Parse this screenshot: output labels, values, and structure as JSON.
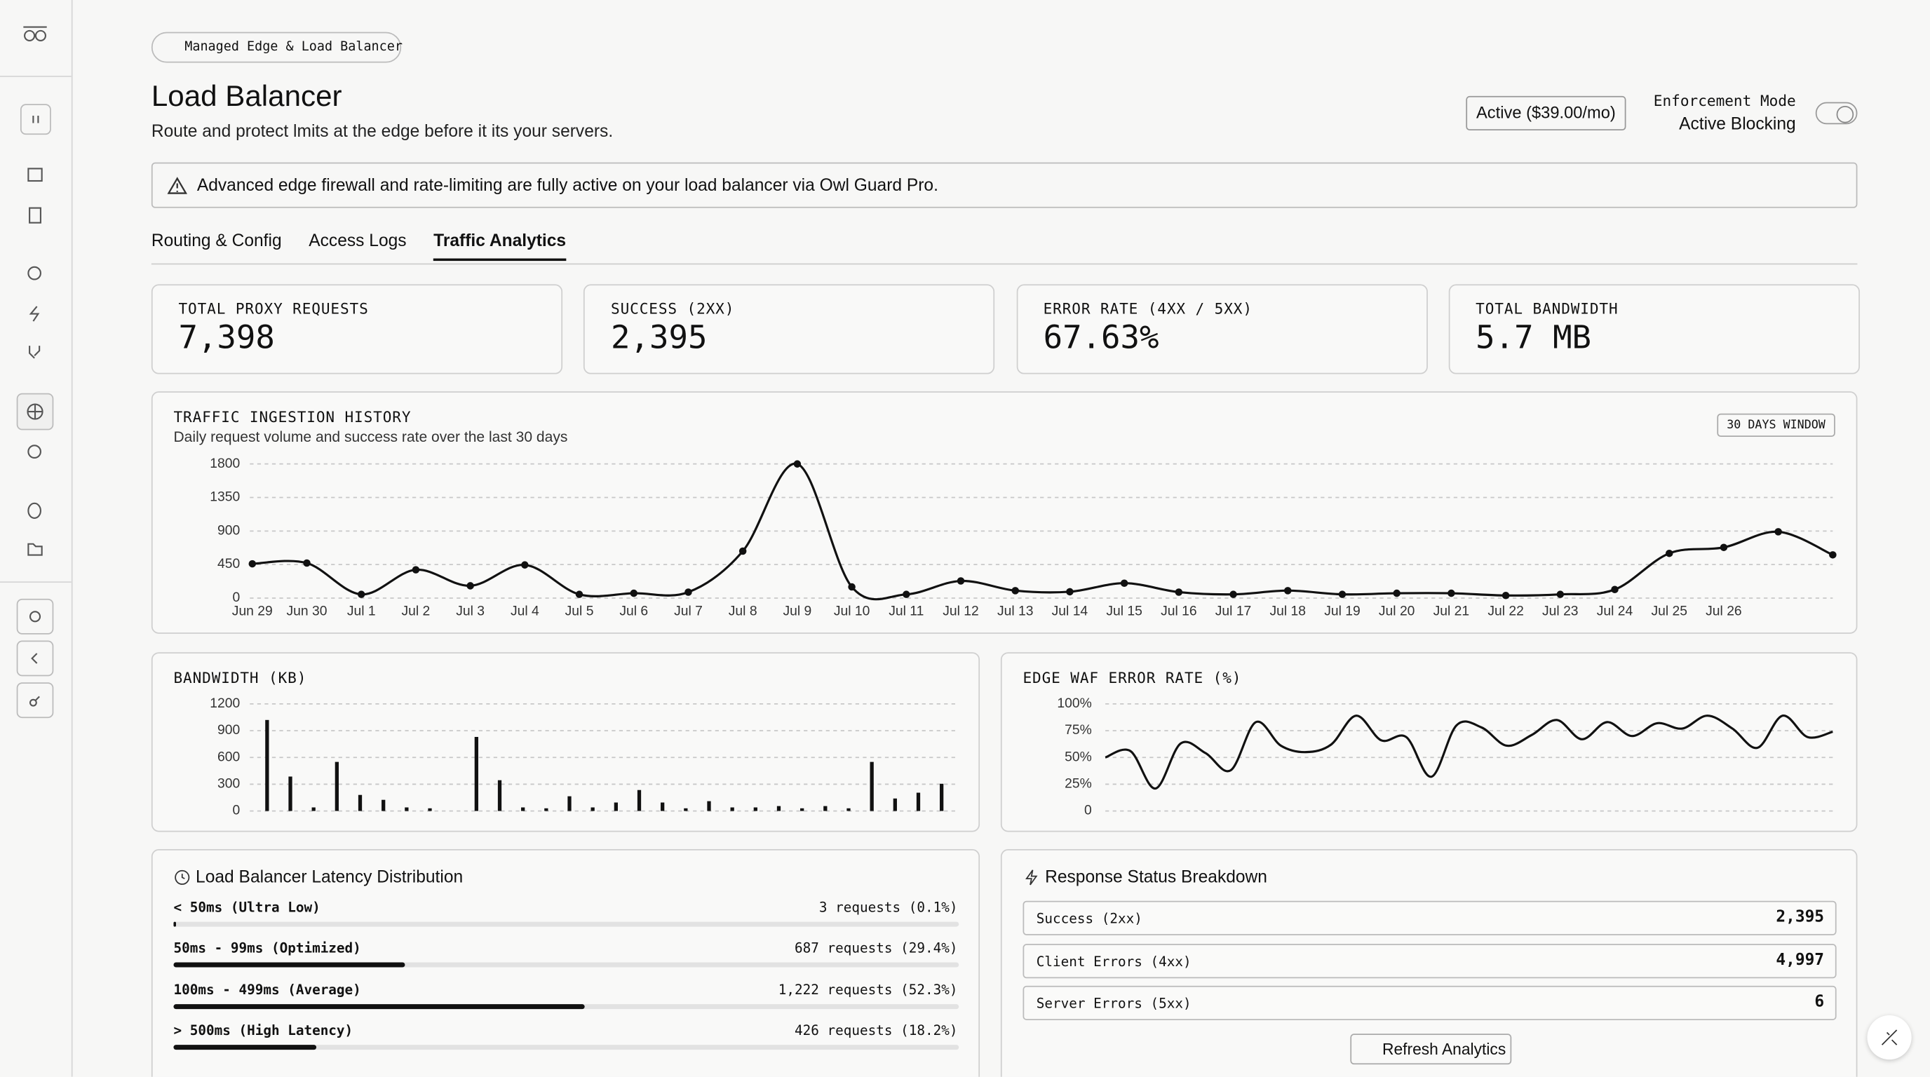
{
  "header": {
    "badge": "Managed Edge & Load Balancer",
    "title": "Load Balancer",
    "subtitle": "Route and protect lmits at the edge before it its your servers.",
    "plan": "Active ($39.00/mo)",
    "mode_label": "Enforcement Mode",
    "mode_value": "Active Blocking"
  },
  "alert": "Advanced edge firewall and rate-limiting are fully active on your load balancer via Owl Guard Pro.",
  "tabs": [
    "Routing & Config",
    "Access Logs",
    "Traffic Analytics"
  ],
  "active_tab": 2,
  "stats": [
    {
      "label": "TOTAL PROXY REQUESTS",
      "value": "7,398"
    },
    {
      "label": "SUCCESS (2XX)",
      "value": "2,395"
    },
    {
      "label": "ERROR RATE (4XX / 5XX)",
      "value": "67.63%"
    },
    {
      "label": "TOTAL BANDWIDTH",
      "value": "5.7 MB"
    }
  ],
  "chart_data": [
    {
      "type": "line",
      "title": "TRAFFIC INGESTION HISTORY",
      "subtitle": "Daily request volume and success rate over the last 30 days",
      "badge": "30 DAYS WINDOW",
      "categories": [
        "Jun 29",
        "Jun 30",
        "Jul 1",
        "Jul 2",
        "Jul 3",
        "Jul 4",
        "Jul 5",
        "Jul 6",
        "Jul 7",
        "Jul 8",
        "Jul 9",
        "Jul 10",
        "Jul 11",
        "Jul 12",
        "Jul 13",
        "Jul 14",
        "Jul 15",
        "Jul 16",
        "Jul 17",
        "Jul 18",
        "Jul 19",
        "Jul 20",
        "Jul 21",
        "Jul 22",
        "Jul 23",
        "Jul 24",
        "Jul 25",
        "Jul 26",
        null,
        null
      ],
      "values": [
        460,
        470,
        50,
        380,
        165,
        445,
        50,
        65,
        80,
        630,
        1800,
        150,
        50,
        230,
        100,
        85,
        200,
        80,
        50,
        100,
        50,
        65,
        65,
        35,
        50,
        115,
        600,
        680,
        890,
        580
      ],
      "color": "#111111",
      "markers": true,
      "ylim": [
        0,
        1800
      ],
      "yticks": [
        0,
        450,
        900,
        1350,
        1800
      ],
      "grid": true
    },
    {
      "type": "bar",
      "title": "BANDWIDTH (KB)",
      "values": [
        1020,
        386,
        40,
        550,
        180,
        125,
        40,
        30,
        0,
        830,
        345,
        40,
        30,
        165,
        40,
        95,
        235,
        95,
        30,
        110,
        40,
        40,
        55,
        30,
        55,
        30,
        550,
        140,
        205,
        305
      ],
      "color": "#111111",
      "ylim": [
        0,
        1200
      ],
      "yticks": [
        0,
        300,
        600,
        900,
        1200
      ],
      "grid": true
    },
    {
      "type": "line",
      "title": "EDGE WAF ERROR RATE (%)",
      "values": [
        50,
        56,
        21,
        63,
        54,
        38,
        83,
        61,
        55,
        62,
        89,
        66,
        69,
        32,
        80,
        78,
        61,
        71,
        85,
        67,
        83,
        70,
        82,
        77,
        89,
        77,
        59,
        89,
        69,
        74
      ],
      "color": "#111111",
      "markers": false,
      "ylim": [
        0,
        100
      ],
      "yticks": [
        0,
        {
          "value": 25,
          "label": "25%"
        },
        {
          "value": 50,
          "label": "50%"
        },
        {
          "value": 75,
          "label": "75%"
        },
        {
          "value": 100,
          "label": "100%"
        }
      ],
      "grid": true
    }
  ],
  "latency": {
    "title": "Load Balancer Latency Distribution",
    "rows": [
      {
        "label": "< 50ms (Ultra Low)",
        "count": "3 requests (0.1%)",
        "percent": 0.1
      },
      {
        "label": "50ms - 99ms (Optimized)",
        "count": "687 requests (29.4%)",
        "percent": 29.4
      },
      {
        "label": "100ms - 499ms (Average)",
        "count": "1,222 requests (52.3%)",
        "percent": 52.3
      },
      {
        "label": "> 500ms (High Latency)",
        "count": "426 requests (18.2%)",
        "percent": 18.2
      }
    ]
  },
  "status": {
    "title": "Response Status Breakdown",
    "rows": [
      {
        "label": "Success (2xx)",
        "value": "2,395"
      },
      {
        "label": "Client Errors (4xx)",
        "value": "4,997"
      },
      {
        "label": "Server Errors (5xx)",
        "value": "6"
      }
    ],
    "button": "Refresh Analytics"
  }
}
